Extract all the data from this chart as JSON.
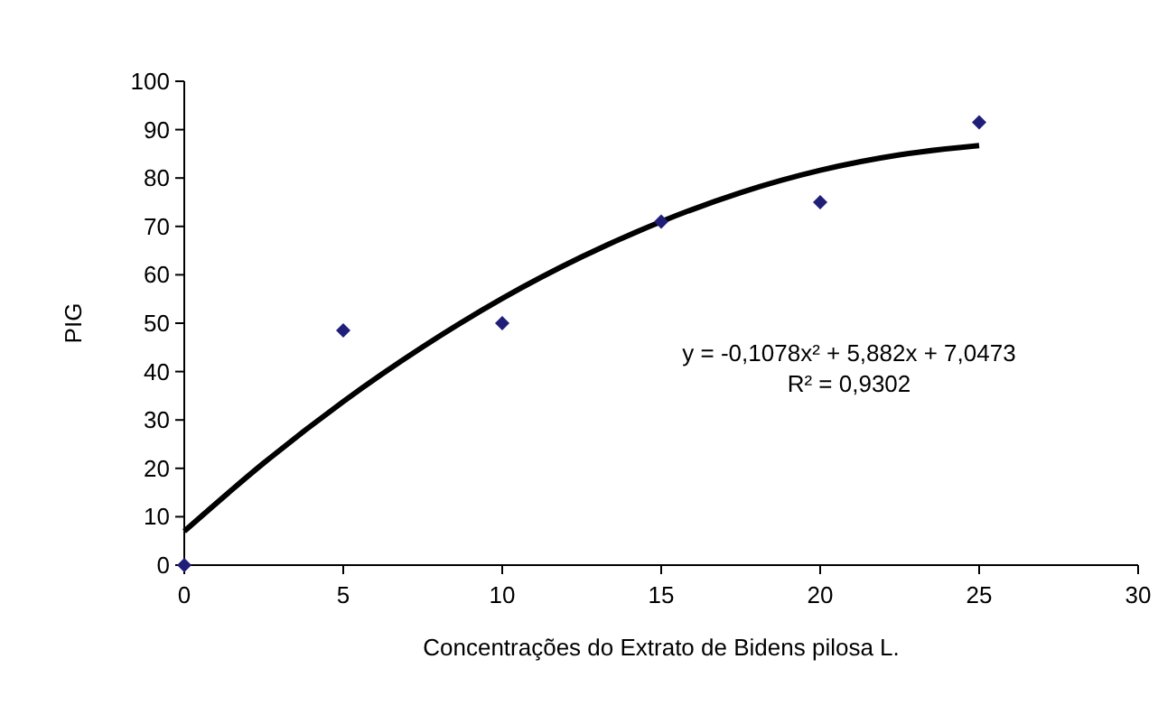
{
  "chart_data": {
    "type": "scatter",
    "xlabel": "Concentrações do Extrato de Bidens pilosa L.",
    "ylabel": "PIG",
    "xlim": [
      0,
      30
    ],
    "xticks": [
      0,
      5,
      10,
      15,
      20,
      25,
      30
    ],
    "ylim": [
      0,
      100
    ],
    "yticks": [
      0,
      10,
      20,
      30,
      40,
      50,
      60,
      70,
      80,
      90,
      100
    ],
    "grid": false,
    "series": [
      {
        "color": "#1f1f7a",
        "marker": "diamond",
        "x": [
          0,
          5,
          10,
          15,
          20,
          25
        ],
        "values": [
          0,
          48.5,
          50,
          71,
          75,
          91.5
        ]
      },
      {
        "type": "line",
        "color": "#000000",
        "x": [
          0,
          2.5,
          5,
          7.5,
          10,
          12.5,
          15,
          17.5,
          20,
          22.5,
          25
        ],
        "values": [
          7,
          21.1,
          33.8,
          45.1,
          55.1,
          63.7,
          71.0,
          77.0,
          81.6,
          84.8,
          86.7
        ]
      }
    ],
    "annotations": [
      "y = -0,1078x² + 5,882x + 7,0473",
      "R² = 0,9302"
    ]
  }
}
